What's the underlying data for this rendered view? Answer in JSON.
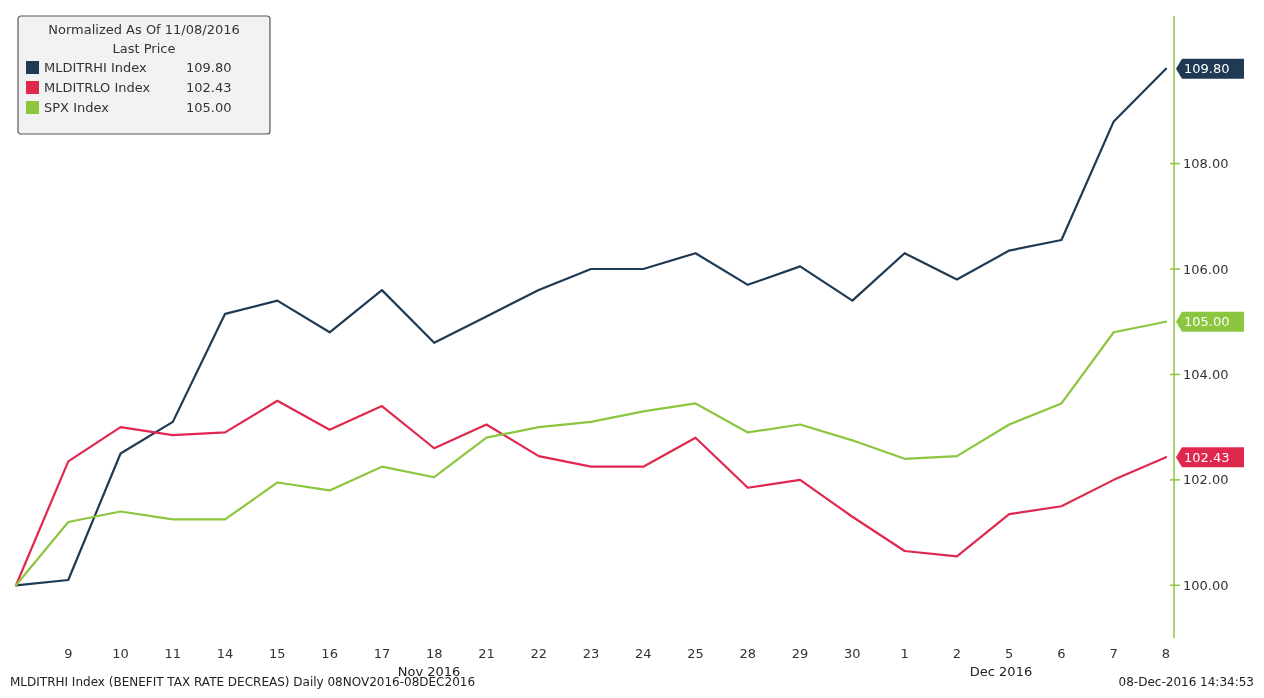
{
  "chart_data": {
    "type": "line",
    "categories": [
      null,
      "9",
      "10",
      "11",
      "14",
      "15",
      "16",
      "17",
      "18",
      "21",
      "22",
      "23",
      "24",
      "25",
      "28",
      "29",
      "30",
      "1",
      "2",
      "5",
      "6",
      "7",
      "8"
    ],
    "series": [
      {
        "name": "MLDITRHI Index",
        "color": "#1f3a52",
        "values": [
          100.0,
          100.1,
          102.5,
          103.1,
          105.15,
          105.4,
          104.8,
          105.6,
          104.6,
          105.1,
          105.6,
          106.0,
          106.0,
          106.3,
          105.7,
          106.05,
          105.4,
          106.3,
          105.8,
          106.35,
          106.55,
          108.8,
          109.8
        ],
        "value_labels": [
          null,
          null,
          null,
          null,
          null,
          null,
          null,
          null,
          null,
          null,
          null,
          null,
          null,
          null,
          null,
          null,
          null,
          null,
          null,
          null,
          null,
          null,
          "109.80"
        ]
      },
      {
        "name": "MLDITRLO Index",
        "color": "#e0284f",
        "values": [
          100.0,
          102.35,
          103.0,
          102.85,
          102.9,
          103.5,
          102.95,
          103.4,
          102.6,
          103.05,
          102.45,
          102.25,
          102.25,
          102.8,
          101.85,
          102.0,
          101.3,
          100.65,
          100.55,
          101.35,
          101.5,
          102.0,
          102.43
        ],
        "value_labels": [
          null,
          null,
          null,
          null,
          null,
          null,
          null,
          null,
          null,
          null,
          null,
          null,
          null,
          null,
          null,
          null,
          null,
          null,
          null,
          null,
          null,
          null,
          "102.43"
        ]
      },
      {
        "name": "SPX Index",
        "color": "#8cc63f",
        "values": [
          100.0,
          101.2,
          101.4,
          101.25,
          101.25,
          101.95,
          101.8,
          102.25,
          102.05,
          102.8,
          103.0,
          103.1,
          103.3,
          103.45,
          102.9,
          103.05,
          102.75,
          102.4,
          102.45,
          103.05,
          103.45,
          104.8,
          105.0
        ],
        "value_labels": [
          null,
          null,
          null,
          null,
          null,
          null,
          null,
          null,
          null,
          null,
          null,
          null,
          null,
          null,
          null,
          null,
          null,
          null,
          null,
          null,
          null,
          null,
          "105.00"
        ]
      }
    ],
    "ylim": [
      99,
      110.8
    ],
    "yticks": [
      {
        "value": 100,
        "label": "100.00"
      },
      {
        "value": 102,
        "label": "102.00"
      },
      {
        "value": 104,
        "label": "104.00"
      },
      {
        "value": 106,
        "label": "106.00"
      },
      {
        "value": 108,
        "label": "108.00"
      }
    ],
    "legend": "top left",
    "legend_title": "Normalized As Of 11/08/2016\nLast Price",
    "annotations": [
      "Nov 2016",
      "Dec 2016",
      "MLDITRHI Index (BENEFIT TAX RATE DECREAS)  Daily 08NOV2016-08DEC2016",
      "08-Dec-2016 14:34:53"
    ]
  }
}
